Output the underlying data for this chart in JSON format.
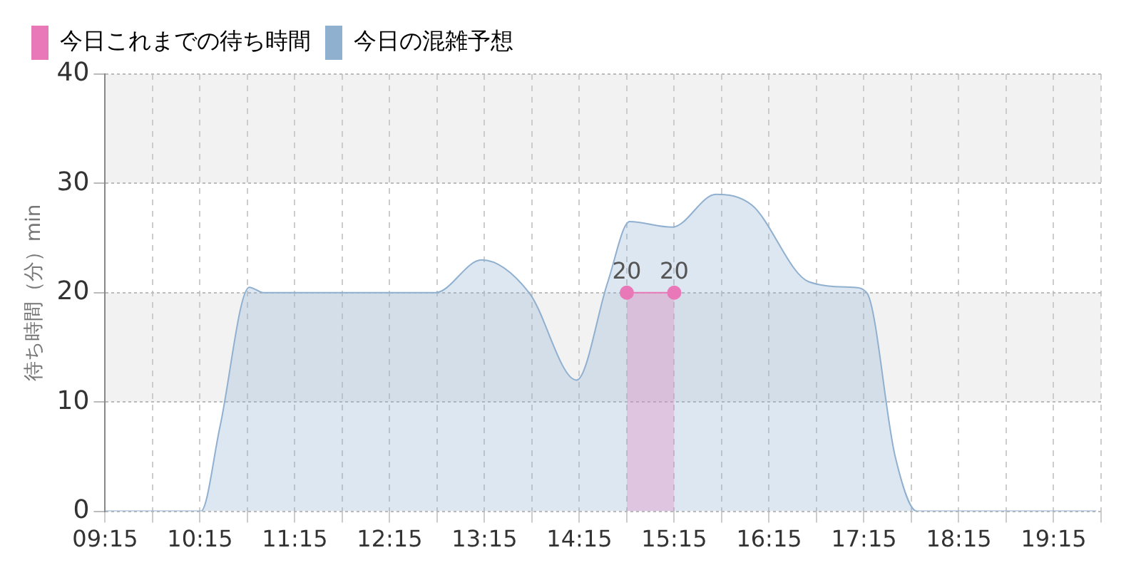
{
  "chart_data": {
    "type": "area",
    "ylabel": "待ち時間（分）min",
    "xlim": [
      9.25,
      19.75
    ],
    "ylim": [
      0,
      40
    ],
    "xticks": [
      {
        "value": 9.25,
        "label": "09:15"
      },
      {
        "value": 9.75,
        "label": null
      },
      {
        "value": 10.25,
        "label": "10:15"
      },
      {
        "value": 10.75,
        "label": null
      },
      {
        "value": 11.25,
        "label": "11:15"
      },
      {
        "value": 11.75,
        "label": null
      },
      {
        "value": 12.25,
        "label": "12:15"
      },
      {
        "value": 12.75,
        "label": null
      },
      {
        "value": 13.25,
        "label": "13:15"
      },
      {
        "value": 13.75,
        "label": null
      },
      {
        "value": 14.25,
        "label": "14:15"
      },
      {
        "value": 14.75,
        "label": null
      },
      {
        "value": 15.25,
        "label": "15:15"
      },
      {
        "value": 15.75,
        "label": null
      },
      {
        "value": 16.25,
        "label": "16:15"
      },
      {
        "value": 16.75,
        "label": null
      },
      {
        "value": 17.25,
        "label": "17:15"
      },
      {
        "value": 17.75,
        "label": null
      },
      {
        "value": 18.25,
        "label": "18:15"
      },
      {
        "value": 18.75,
        "label": null
      },
      {
        "value": 19.25,
        "label": "19:15"
      },
      {
        "value": 19.75,
        "label": null
      }
    ],
    "yticks": [
      0,
      10,
      20,
      30,
      40
    ],
    "grid": true,
    "legend": "top left",
    "series": [
      {
        "name": "今日これまでの待ち時間",
        "color": "#e878b8",
        "marker": "circle",
        "data_labels": true,
        "x": [
          14.75,
          15.25
        ],
        "values": [
          20,
          20
        ]
      },
      {
        "name": "今日の混雑予想",
        "color": "#90b0d0",
        "marker": "none",
        "x": [
          9.25,
          10.16,
          10.26,
          10.46,
          10.77,
          10.92,
          12.43,
          12.73,
          13.22,
          13.72,
          14.22,
          14.55,
          14.78,
          15.23,
          15.69,
          16.07,
          16.67,
          17.13,
          17.28,
          17.58,
          17.81,
          19.7
        ],
        "values": [
          0,
          0,
          0,
          7.7,
          20.5,
          20,
          20,
          20,
          23,
          20,
          12,
          21,
          26.5,
          26,
          29,
          28,
          21,
          20.5,
          20,
          5,
          0,
          0
        ]
      }
    ]
  }
}
